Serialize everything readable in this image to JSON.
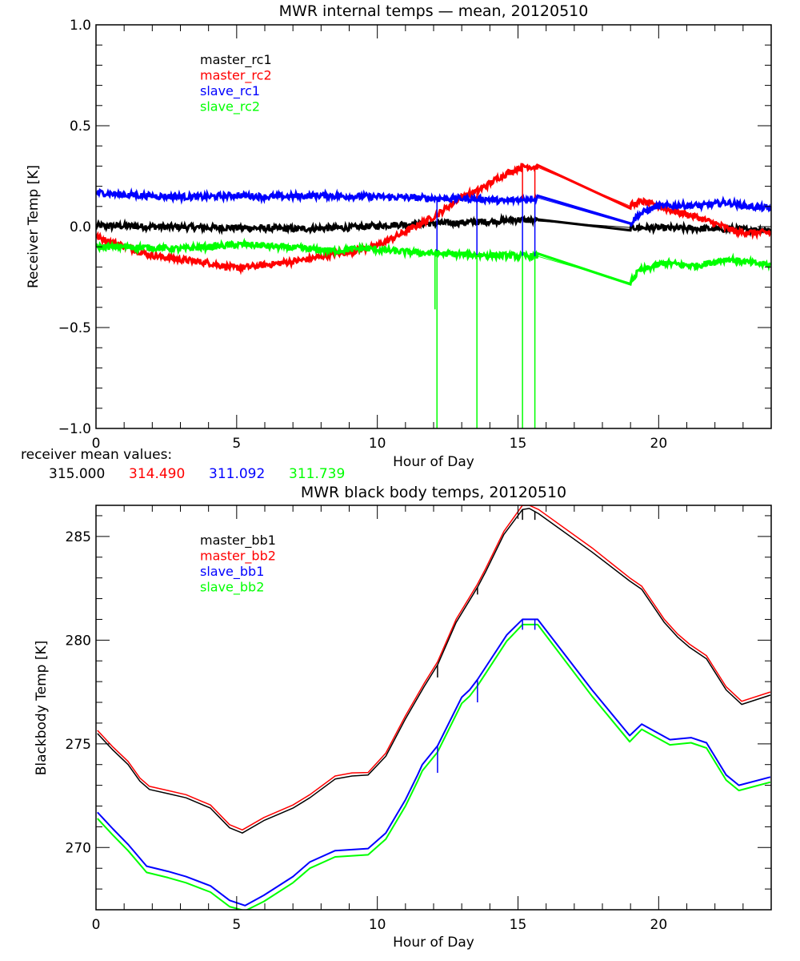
{
  "chart_data": [
    {
      "type": "line",
      "title": "MWR internal temps — mean, 20120510",
      "xlabel": "Hour of Day",
      "ylabel": "Receiver Temp [K]",
      "xlim": [
        0,
        24
      ],
      "ylim": [
        -1.0,
        1.0
      ],
      "x_ticks": [
        0,
        5,
        10,
        15,
        20
      ],
      "x_tick_labels": [
        "0",
        "5",
        "10",
        "15",
        "20"
      ],
      "x_minor_step": 1,
      "y_ticks": [
        -1.0,
        -0.5,
        0.0,
        0.5,
        1.0
      ],
      "y_tick_labels": [
        "−1.0",
        "−0.5",
        "0.0",
        "0.5",
        "1.0"
      ],
      "y_minor_step": 0.1,
      "grid": false,
      "legend_position": "top-left",
      "noisy": true,
      "series": [
        {
          "name": "master_rc1",
          "color": "#000000",
          "x": [
            0.0,
            1.0,
            2.0,
            3.0,
            4.0,
            5.0,
            6.0,
            7.0,
            8.0,
            9.0,
            10.0,
            11.0,
            12.0,
            13.0,
            14.0,
            15.0,
            15.7,
            18.97,
            19.5,
            20.5,
            21.5,
            22.5,
            23.5,
            24.0
          ],
          "y": [
            0.005,
            0.003,
            0.0,
            -0.002,
            -0.005,
            -0.005,
            -0.008,
            -0.012,
            -0.008,
            -0.005,
            0.005,
            0.012,
            0.016,
            0.02,
            0.025,
            0.035,
            0.028,
            -0.004,
            -0.005,
            -0.008,
            -0.01,
            -0.012,
            -0.015,
            -0.015
          ]
        },
        {
          "name": "master_rc2",
          "color": "#ff0000",
          "x": [
            0.0,
            0.5,
            1.0,
            1.9,
            2.85,
            4.0,
            4.9,
            5.4,
            6.6,
            7.6,
            8.45,
            9.0,
            9.9,
            10.8,
            11.5,
            12.15,
            12.9,
            13.6,
            14.4,
            15.2,
            15.7,
            18.97,
            19.4,
            20.4,
            21.3,
            22.3,
            22.8,
            23.5,
            24.0
          ],
          "y": [
            -0.05,
            -0.075,
            -0.095,
            -0.14,
            -0.16,
            -0.18,
            -0.205,
            -0.2,
            -0.18,
            -0.16,
            -0.135,
            -0.125,
            -0.1,
            -0.04,
            0.012,
            0.06,
            0.14,
            0.18,
            0.25,
            0.3,
            0.294,
            0.103,
            0.125,
            0.083,
            0.05,
            0.0,
            -0.028,
            -0.03,
            -0.03
          ]
        },
        {
          "name": "slave_rc1",
          "color": "#0000ff",
          "x": [
            0.0,
            1.0,
            2.0,
            3.0,
            4.0,
            5.0,
            6.0,
            7.0,
            8.0,
            9.0,
            10.0,
            11.0,
            12.0,
            13.0,
            14.0,
            14.5,
            15.0,
            15.7,
            18.97,
            19.3,
            19.9,
            20.85,
            21.6,
            22.4,
            23.2,
            24.0
          ],
          "y": [
            0.17,
            0.158,
            0.152,
            0.148,
            0.148,
            0.155,
            0.148,
            0.15,
            0.155,
            0.15,
            0.148,
            0.145,
            0.14,
            0.14,
            0.135,
            0.125,
            0.135,
            0.143,
            0.012,
            0.06,
            0.1,
            0.105,
            0.105,
            0.12,
            0.1,
            0.09
          ]
        },
        {
          "name": "slave_rc2",
          "color": "#00ff00",
          "x": [
            0.0,
            1.0,
            2.0,
            3.0,
            4.0,
            5.0,
            5.5,
            6.5,
            7.5,
            8.5,
            9.5,
            10.5,
            11.5,
            12.5,
            13.5,
            14.5,
            15.7,
            18.97,
            19.3,
            20.2,
            21.3,
            22.45,
            23.3,
            24.0
          ],
          "y": [
            -0.1,
            -0.1,
            -0.105,
            -0.11,
            -0.1,
            -0.09,
            -0.09,
            -0.1,
            -0.11,
            -0.12,
            -0.107,
            -0.12,
            -0.13,
            -0.135,
            -0.14,
            -0.143,
            -0.147,
            -0.278,
            -0.22,
            -0.18,
            -0.195,
            -0.16,
            -0.18,
            -0.19
          ]
        }
      ],
      "spikes": [
        {
          "series": "slave_rc2",
          "x": 12.05,
          "from": -0.12,
          "to": -0.41
        },
        {
          "series": "slave_rc2",
          "x": 12.12,
          "from": -0.12,
          "to": -1.0
        },
        {
          "series": "slave_rc1",
          "x": 12.12,
          "from": 0.14,
          "to": -0.12
        },
        {
          "series": "slave_rc2",
          "x": 13.54,
          "from": -0.14,
          "to": -1.0
        },
        {
          "series": "slave_rc1",
          "x": 13.54,
          "from": 0.14,
          "to": -0.14
        },
        {
          "series": "master_rc2",
          "x": 13.54,
          "from": 0.18,
          "to": 0.14
        },
        {
          "series": "slave_rc2",
          "x": 15.16,
          "from": -0.145,
          "to": -1.0
        },
        {
          "series": "slave_rc1",
          "x": 15.16,
          "from": 0.14,
          "to": -0.145
        },
        {
          "series": "master_rc2",
          "x": 15.16,
          "from": 0.3,
          "to": 0.14
        },
        {
          "series": "slave_rc2",
          "x": 15.6,
          "from": -0.147,
          "to": -1.0
        },
        {
          "series": "slave_rc1",
          "x": 15.6,
          "from": 0.143,
          "to": -0.147
        },
        {
          "series": "master_rc2",
          "x": 15.6,
          "from": 0.294,
          "to": 0.143
        }
      ],
      "annotation": {
        "label": "receiver mean values:",
        "values": [
          {
            "text": "315.000",
            "color": "#000000"
          },
          {
            "text": "314.490",
            "color": "#ff0000"
          },
          {
            "text": "311.092",
            "color": "#0000ff"
          },
          {
            "text": "311.739",
            "color": "#00ff00"
          }
        ]
      }
    },
    {
      "type": "line",
      "title": "MWR black body temps, 20120510",
      "xlabel": "Hour of Day",
      "ylabel": "Blackbody Temp [K]",
      "xlim": [
        0,
        24
      ],
      "ylim": [
        267.0,
        286.5
      ],
      "x_ticks": [
        0,
        5,
        10,
        15,
        20
      ],
      "x_tick_labels": [
        "0",
        "5",
        "10",
        "15",
        "20"
      ],
      "x_minor_step": 1,
      "y_ticks": [
        270,
        275,
        280,
        285
      ],
      "y_tick_labels": [
        "270",
        "275",
        "280",
        "285"
      ],
      "y_minor_step": 1,
      "grid": false,
      "legend_position": "top-left",
      "noisy": false,
      "series": [
        {
          "name": "master_bb1",
          "color": "#000000",
          "x": [
            0.05,
            0.6,
            1.14,
            1.56,
            1.9,
            2.56,
            3.2,
            4.07,
            4.75,
            5.2,
            5.97,
            7.0,
            7.6,
            8.5,
            9.1,
            9.67,
            10.3,
            11.0,
            11.66,
            12.14,
            12.8,
            13.56,
            13.85,
            14.5,
            15.16,
            15.4,
            15.73,
            17.63,
            18.97,
            19.4,
            20.2,
            20.67,
            21.1,
            21.7,
            22.4,
            22.95,
            23.97
          ],
          "y": [
            275.5,
            274.7,
            274.0,
            273.2,
            272.8,
            272.6,
            272.4,
            271.9,
            270.95,
            270.7,
            271.3,
            271.9,
            272.4,
            273.3,
            273.45,
            273.5,
            274.4,
            276.2,
            277.75,
            278.8,
            280.85,
            282.55,
            283.3,
            285.1,
            286.3,
            286.35,
            286.1,
            284.25,
            282.85,
            282.45,
            280.85,
            280.15,
            279.65,
            279.1,
            277.6,
            276.9,
            277.35
          ]
        },
        {
          "name": "master_bb2",
          "color": "#ff0000",
          "x": [
            0.05,
            0.6,
            1.14,
            1.56,
            1.9,
            2.56,
            3.2,
            4.07,
            4.75,
            5.2,
            5.97,
            7.0,
            7.6,
            8.5,
            9.1,
            9.67,
            10.3,
            11.0,
            11.66,
            12.14,
            12.8,
            13.56,
            13.85,
            14.5,
            15.16,
            15.4,
            15.73,
            17.63,
            18.97,
            19.4,
            20.2,
            20.67,
            21.1,
            21.7,
            22.4,
            22.95,
            23.97
          ],
          "y": [
            275.65,
            274.85,
            274.15,
            273.35,
            272.95,
            272.75,
            272.55,
            272.05,
            271.1,
            270.85,
            271.45,
            272.05,
            272.55,
            273.45,
            273.6,
            273.62,
            274.55,
            276.35,
            277.9,
            278.95,
            281.0,
            282.7,
            283.45,
            285.25,
            286.5,
            286.5,
            286.3,
            284.45,
            283.0,
            282.6,
            281.0,
            280.3,
            279.8,
            279.25,
            277.75,
            277.05,
            277.5
          ]
        },
        {
          "name": "slave_bb1",
          "color": "#0000ff",
          "x": [
            0.05,
            0.6,
            1.14,
            1.8,
            2.56,
            3.2,
            4.07,
            4.75,
            5.3,
            5.97,
            7.0,
            7.6,
            8.5,
            9.67,
            10.3,
            11.0,
            11.43,
            11.6,
            12.14,
            13.0,
            13.28,
            13.56,
            13.85,
            14.6,
            15.16,
            15.7,
            17.63,
            18.97,
            19.4,
            20.4,
            21.15,
            21.7,
            22.4,
            22.85,
            23.97
          ],
          "y": [
            271.7,
            270.9,
            270.15,
            269.1,
            268.85,
            268.6,
            268.15,
            267.45,
            267.2,
            267.7,
            268.6,
            269.3,
            269.85,
            269.95,
            270.7,
            272.3,
            273.5,
            274.0,
            274.9,
            277.25,
            277.6,
            278.1,
            278.7,
            280.25,
            281.0,
            281.0,
            277.6,
            275.4,
            275.95,
            275.2,
            275.3,
            275.05,
            273.5,
            273.0,
            273.4
          ]
        },
        {
          "name": "slave_bb2",
          "color": "#00ff00",
          "x": [
            0.05,
            0.6,
            1.14,
            1.8,
            2.56,
            3.2,
            4.07,
            4.75,
            5.3,
            5.97,
            7.0,
            7.6,
            8.5,
            9.67,
            10.3,
            11.0,
            11.43,
            11.6,
            12.14,
            13.0,
            13.28,
            13.56,
            13.85,
            14.6,
            15.16,
            15.7,
            17.63,
            18.97,
            19.4,
            20.4,
            21.15,
            21.7,
            22.4,
            22.85,
            23.97
          ],
          "y": [
            271.4,
            270.6,
            269.85,
            268.8,
            268.55,
            268.3,
            267.85,
            267.15,
            266.95,
            267.4,
            268.3,
            269.0,
            269.55,
            269.65,
            270.4,
            272.0,
            273.2,
            273.7,
            274.6,
            276.95,
            277.3,
            277.8,
            278.4,
            279.95,
            280.75,
            280.75,
            277.3,
            275.1,
            275.7,
            274.95,
            275.05,
            274.8,
            273.25,
            272.75,
            273.15
          ]
        }
      ],
      "spikes": [
        {
          "series": "master_bb1",
          "x": 12.14,
          "from": 278.8,
          "to": 278.2
        },
        {
          "series": "master_bb1",
          "x": 13.56,
          "from": 282.55,
          "to": 282.2
        },
        {
          "series": "master_bb1",
          "x": 15.16,
          "from": 286.3,
          "to": 285.8
        },
        {
          "series": "master_bb1",
          "x": 15.6,
          "from": 286.2,
          "to": 285.8
        },
        {
          "series": "slave_bb1",
          "x": 12.14,
          "from": 274.9,
          "to": 273.6
        },
        {
          "series": "slave_bb1",
          "x": 13.56,
          "from": 278.1,
          "to": 277.0
        },
        {
          "series": "slave_bb1",
          "x": 15.16,
          "from": 281.0,
          "to": 280.5
        },
        {
          "series": "slave_bb1",
          "x": 15.6,
          "from": 281.0,
          "to": 280.5
        }
      ]
    }
  ]
}
